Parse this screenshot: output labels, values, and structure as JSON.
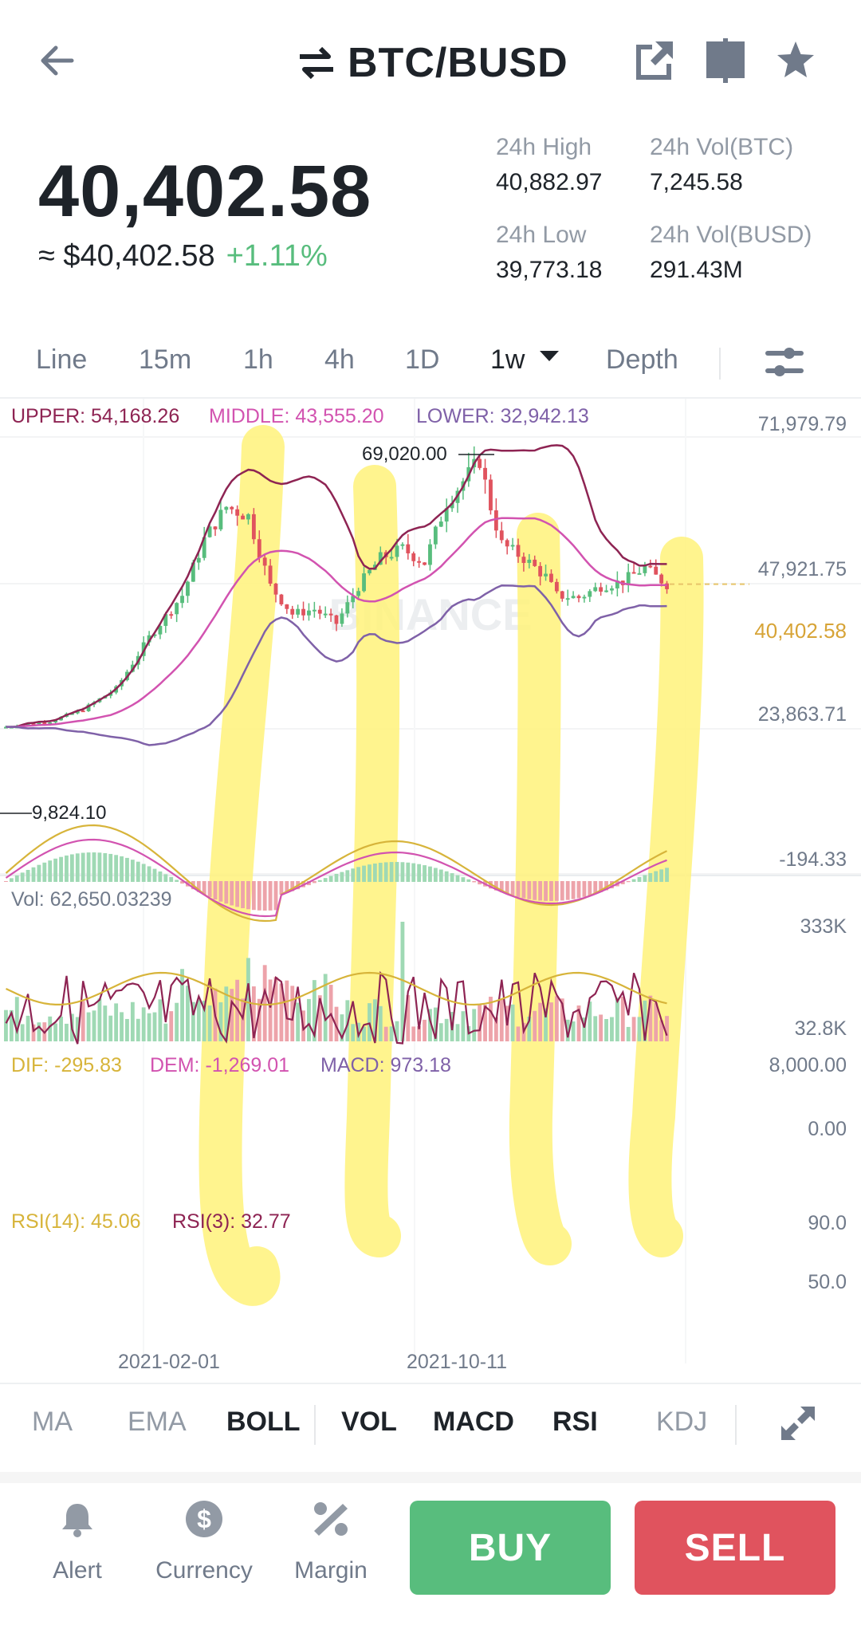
{
  "header": {
    "pair": "BTC/BUSD",
    "icons": [
      "back-arrow-icon",
      "swap-icon",
      "share-icon",
      "book-icon",
      "star-icon"
    ]
  },
  "ticker": {
    "last_price": "40,402.58",
    "fiat_price": "≈ $40,402.58",
    "change": "+1.11%",
    "high_label": "24h High",
    "high_value": "40,882.97",
    "low_label": "24h Low",
    "low_value": "39,773.18",
    "vol_base_label": "24h Vol(BTC)",
    "vol_base_value": "7,245.58",
    "vol_quote_label": "24h Vol(BUSD)",
    "vol_quote_value": "291.43M"
  },
  "timeframes": [
    {
      "label": "Line"
    },
    {
      "label": "15m"
    },
    {
      "label": "1h"
    },
    {
      "label": "4h"
    },
    {
      "label": "1D"
    },
    {
      "label": "1w",
      "active": true
    },
    {
      "label": "Depth"
    }
  ],
  "boll": {
    "upper": "UPPER: 54,168.26",
    "middle": "MIDDLE: 43,555.20",
    "lower": "LOWER: 32,942.13",
    "axis": [
      "71,979.79",
      "47,921.75",
      "23,863.71",
      "-194.33"
    ],
    "current": "40,402.58",
    "high_marker": "69,020.00",
    "low_marker": "9,824.10",
    "watermark": "BINANCE"
  },
  "volume": {
    "label": "Vol: 62,650.03239",
    "axis": [
      "333K",
      "32.8K"
    ]
  },
  "macd": {
    "dif": "DIF: -295.83",
    "dem": "DEM: -1,269.01",
    "macd": "MACD: 973.18",
    "axis": [
      "8,000.00",
      "0.00"
    ]
  },
  "rsi": {
    "rsi14": "RSI(14): 45.06",
    "rsi3": "RSI(3): 32.77",
    "axis": [
      "90.0",
      "50.0"
    ]
  },
  "dates": [
    "2021-02-01",
    "2021-10-11"
  ],
  "indicators": [
    {
      "label": "MA",
      "on": false
    },
    {
      "label": "EMA",
      "on": false
    },
    {
      "label": "BOLL",
      "on": true
    },
    {
      "label": "VOL",
      "on": true
    },
    {
      "label": "MACD",
      "on": true
    },
    {
      "label": "RSI",
      "on": true
    },
    {
      "label": "KDJ",
      "on": false
    }
  ],
  "actions": {
    "alert": "Alert",
    "currency": "Currency",
    "margin": "Margin",
    "buy": "BUY",
    "sell": "SELL"
  },
  "colors": {
    "up": "#58bd7d",
    "down": "#e0535e",
    "boll_upper": "#8e2453",
    "boll_middle": "#d253b0",
    "boll_lower": "#7f61a8",
    "dif": "#d7b43a",
    "highlight": "#fff27a"
  }
}
